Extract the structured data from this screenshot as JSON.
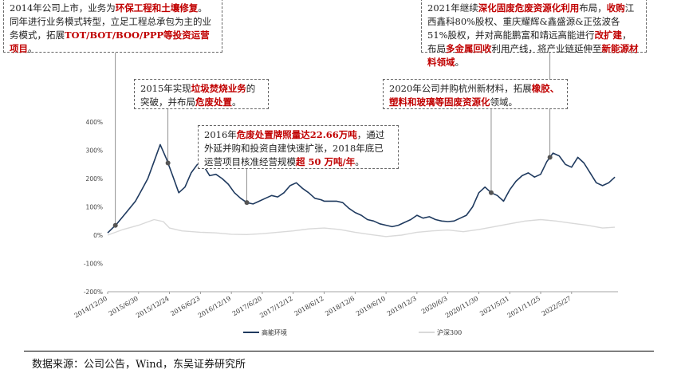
{
  "chart_data": {
    "type": "line",
    "y_tick_labels": [
      "400%",
      "300%",
      "200%",
      "100%",
      "0%",
      "-100%",
      "-200%"
    ],
    "y_ticks": [
      400,
      300,
      200,
      100,
      0,
      -100,
      -200
    ],
    "ylim": [
      -200,
      400
    ],
    "x_tick_labels": [
      "2014/12/30",
      "2015/6/30",
      "2015/12/24",
      "2016/6/23",
      "2016/12/19",
      "2017/6/20",
      "2017/12/12",
      "2018/6/12",
      "2018/12/6",
      "2019/6/10",
      "2019/12/3",
      "2020/6/3",
      "2020/11/30",
      "2021/5/31",
      "2021/11/25",
      "2022/5/27"
    ],
    "legend": [
      "高能环境",
      "沪深300"
    ],
    "series": [
      {
        "name": "高能环境",
        "color": "#1f3a5f",
        "points": [
          [
            0,
            8
          ],
          [
            0.3,
            40
          ],
          [
            0.6,
            80
          ],
          [
            0.9,
            120
          ],
          [
            1.1,
            160
          ],
          [
            1.3,
            200
          ],
          [
            1.5,
            260
          ],
          [
            1.7,
            320
          ],
          [
            1.9,
            270
          ],
          [
            2.1,
            210
          ],
          [
            2.3,
            150
          ],
          [
            2.5,
            170
          ],
          [
            2.7,
            220
          ],
          [
            2.9,
            250
          ],
          [
            3.1,
            245
          ],
          [
            3.3,
            210
          ],
          [
            3.5,
            215
          ],
          [
            3.7,
            200
          ],
          [
            3.9,
            180
          ],
          [
            4.1,
            150
          ],
          [
            4.3,
            130
          ],
          [
            4.5,
            115
          ],
          [
            4.7,
            110
          ],
          [
            4.9,
            120
          ],
          [
            5.1,
            130
          ],
          [
            5.3,
            140
          ],
          [
            5.5,
            135
          ],
          [
            5.7,
            150
          ],
          [
            5.9,
            175
          ],
          [
            6.1,
            185
          ],
          [
            6.3,
            165
          ],
          [
            6.5,
            150
          ],
          [
            6.7,
            130
          ],
          [
            6.9,
            125
          ],
          [
            7,
            120
          ],
          [
            7.4,
            120
          ],
          [
            7.6,
            115
          ],
          [
            7.8,
            95
          ],
          [
            8,
            80
          ],
          [
            8.2,
            70
          ],
          [
            8.4,
            55
          ],
          [
            8.6,
            50
          ],
          [
            8.8,
            40
          ],
          [
            9,
            35
          ],
          [
            9.2,
            30
          ],
          [
            9.4,
            35
          ],
          [
            9.6,
            45
          ],
          [
            9.8,
            55
          ],
          [
            10,
            70
          ],
          [
            10.2,
            60
          ],
          [
            10.4,
            65
          ],
          [
            10.6,
            55
          ],
          [
            10.8,
            50
          ],
          [
            11,
            48
          ],
          [
            11.2,
            50
          ],
          [
            11.4,
            60
          ],
          [
            11.6,
            70
          ],
          [
            11.8,
            100
          ],
          [
            12,
            150
          ],
          [
            12.2,
            170
          ],
          [
            12.4,
            150
          ],
          [
            12.6,
            140
          ],
          [
            12.8,
            120
          ],
          [
            13,
            160
          ],
          [
            13.2,
            190
          ],
          [
            13.4,
            210
          ],
          [
            13.6,
            220
          ],
          [
            13.8,
            205
          ],
          [
            14,
            215
          ],
          [
            14.2,
            260
          ],
          [
            14.4,
            290
          ],
          [
            14.6,
            280
          ],
          [
            14.8,
            250
          ],
          [
            15,
            240
          ],
          [
            15.2,
            275
          ],
          [
            15.4,
            255
          ],
          [
            15.6,
            220
          ],
          [
            15.8,
            185
          ],
          [
            16,
            175
          ],
          [
            16.2,
            185
          ],
          [
            16.4,
            205
          ]
        ]
      },
      {
        "name": "沪深300",
        "color": "#d9d9d9",
        "points": [
          [
            0,
            0
          ],
          [
            0.5,
            20
          ],
          [
            1,
            35
          ],
          [
            1.5,
            55
          ],
          [
            1.8,
            48
          ],
          [
            2,
            25
          ],
          [
            2.4,
            15
          ],
          [
            3,
            10
          ],
          [
            3.5,
            8
          ],
          [
            4,
            3
          ],
          [
            4.5,
            2
          ],
          [
            5,
            5
          ],
          [
            5.5,
            10
          ],
          [
            6,
            15
          ],
          [
            6.5,
            22
          ],
          [
            7,
            25
          ],
          [
            7.5,
            20
          ],
          [
            8,
            10
          ],
          [
            8.5,
            2
          ],
          [
            9,
            -5
          ],
          [
            9.5,
            0
          ],
          [
            10,
            10
          ],
          [
            10.5,
            15
          ],
          [
            11,
            18
          ],
          [
            11.5,
            12
          ],
          [
            12,
            20
          ],
          [
            12.5,
            30
          ],
          [
            13,
            40
          ],
          [
            13.5,
            50
          ],
          [
            14,
            55
          ],
          [
            14.5,
            50
          ],
          [
            15,
            42
          ],
          [
            15.5,
            35
          ],
          [
            16,
            25
          ],
          [
            16.4,
            28
          ]
        ]
      }
    ],
    "markers": [
      0.25,
      1.95,
      4.5,
      12.4,
      14.3
    ]
  },
  "callouts": [
    {
      "id": "c2014",
      "parts": [
        {
          "t": "2014年公司上市，业务为",
          "hl": false
        },
        {
          "t": "环保工程和土壤修复",
          "hl": true
        },
        {
          "t": "。同年进行业务模式转型，立足工程总承包为主的业务模式，拓展",
          "hl": false
        },
        {
          "t": "TOT/BOT/BOO/PPP等投资运营项目",
          "hl": true
        },
        {
          "t": "。",
          "hl": false
        }
      ]
    },
    {
      "id": "c2015",
      "parts": [
        {
          "t": "2015年实现",
          "hl": false
        },
        {
          "t": "垃圾焚烧业务",
          "hl": true
        },
        {
          "t": "的突破，并布局",
          "hl": false
        },
        {
          "t": "危废处置",
          "hl": true
        },
        {
          "t": "。",
          "hl": false
        }
      ]
    },
    {
      "id": "c2016",
      "parts": [
        {
          "t": "2016年",
          "hl": false
        },
        {
          "t": "危废处置牌照量达22.66万吨",
          "hl": true
        },
        {
          "t": "，通过外延并购和投资自建快速扩张，2018年底已运营项目核准经营规模",
          "hl": false
        },
        {
          "t": "超 50 万吨/年",
          "hl": true
        },
        {
          "t": "。",
          "hl": false
        }
      ]
    },
    {
      "id": "c2020",
      "parts": [
        {
          "t": "2020年公司并购杭州新材料，拓展",
          "hl": false
        },
        {
          "t": "橡胶、塑料和玻璃等固废资源化",
          "hl": true
        },
        {
          "t": "领域。",
          "hl": false
        }
      ]
    },
    {
      "id": "c2021",
      "parts": [
        {
          "t": "2021年继续",
          "hl": false
        },
        {
          "t": "深化固废危废资源化利用",
          "hl": true
        },
        {
          "t": "布局，",
          "hl": false
        },
        {
          "t": "收购",
          "hl": true
        },
        {
          "t": "江西鑫科80%股权、重庆耀辉&鑫盛源&正弦波各51%股权，并对高能鹏富和靖远高能进行",
          "hl": false
        },
        {
          "t": "改扩建",
          "hl": true
        },
        {
          "t": "，布局",
          "hl": false
        },
        {
          "t": "多金属回收",
          "hl": true
        },
        {
          "t": "利用产线，将产业链延伸至",
          "hl": false
        },
        {
          "t": "新能源材料领域",
          "hl": true
        },
        {
          "t": "。",
          "hl": false
        }
      ]
    }
  ],
  "source": "数据来源：公司公告，Wind，东吴证券研究所"
}
